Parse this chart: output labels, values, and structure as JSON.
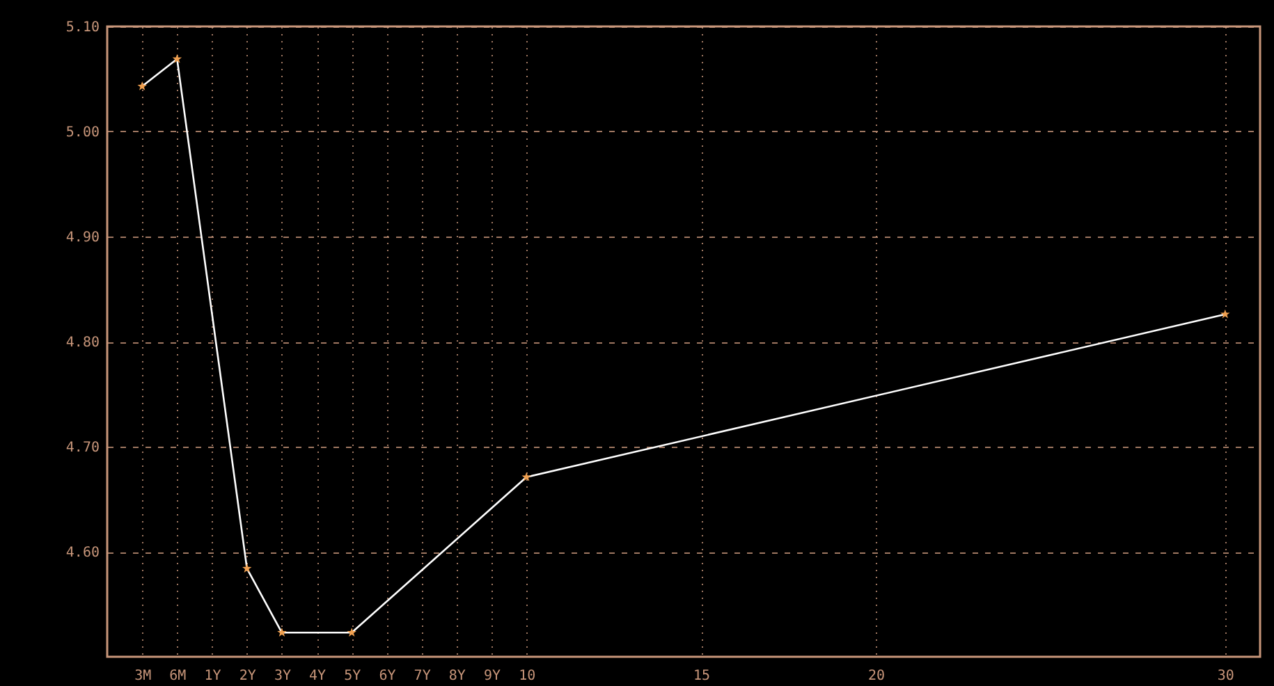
{
  "chart_data": {
    "type": "line",
    "categories": [
      "3M",
      "6M",
      "1Y",
      "2Y",
      "3Y",
      "4Y",
      "5Y",
      "6Y",
      "7Y",
      "8Y",
      "9Y",
      "10",
      null,
      null,
      null,
      null,
      "15",
      null,
      null,
      null,
      null,
      "20",
      null,
      null,
      null,
      null,
      null,
      null,
      null,
      null,
      null,
      "30"
    ],
    "series": [
      {
        "color": "#ffffff",
        "values": [
          5.043,
          5.069,
          null,
          4.584,
          4.523,
          null,
          4.523,
          null,
          null,
          null,
          null,
          4.671,
          null,
          null,
          null,
          null,
          null,
          null,
          null,
          null,
          null,
          null,
          null,
          null,
          null,
          null,
          null,
          null,
          null,
          null,
          null,
          4.826
        ]
      }
    ],
    "ylim": [
      4.5,
      5.1
    ],
    "yticks": [
      {
        "value": 4.6,
        "label": "4.60"
      },
      {
        "value": 4.7,
        "label": "4.70"
      },
      {
        "value": 4.8,
        "label": "4.80"
      },
      {
        "value": 4.9,
        "label": "4.90"
      },
      {
        "value": 5.0,
        "label": "5.00"
      },
      {
        "value": 5.1,
        "label": "5.10"
      }
    ],
    "grid": true,
    "marker": "star",
    "line_style": "solid"
  }
}
